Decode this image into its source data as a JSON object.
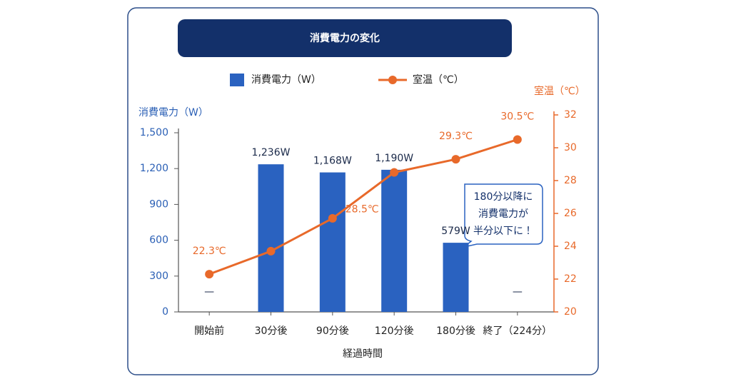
{
  "chart_data": {
    "type": "bar-line",
    "title": "消費電力の変化",
    "x_label": "経過時間",
    "y_label": "消費電力（W）",
    "y2_label": "室温（℃）",
    "categories": [
      "開始前",
      "30分後",
      "90分後",
      "120分後",
      "180分後",
      "終了（224分）"
    ],
    "series": [
      {
        "name": "消費電力（W）",
        "type": "bar",
        "color": "#2a62c0",
        "values": [
          null,
          1236,
          1168,
          1190,
          579,
          null
        ],
        "value_labels": [
          "—",
          "1,236W",
          "1,168W",
          "1,190W",
          "579W",
          "—"
        ]
      },
      {
        "name": "室温（℃）",
        "type": "line",
        "axis": "y2",
        "color": "#e8692a",
        "values": [
          22.3,
          23.7,
          25.7,
          28.5,
          29.3,
          30.5
        ],
        "value_labels": [
          "22.3℃",
          null,
          null,
          "28.5℃",
          "29.3℃",
          "30.5℃"
        ]
      }
    ],
    "ylim": [
      0,
      1500
    ],
    "yticks": [
      0,
      300,
      600,
      900,
      {
        "value": 1200,
        "label": "1,200"
      },
      {
        "value": 1500,
        "label": "1,500"
      }
    ],
    "y2lim": [
      20,
      32
    ],
    "y2ticks": [
      20,
      22,
      24,
      26,
      28,
      30,
      32
    ],
    "annotation": [
      "180分以降に",
      "消費電力が",
      "半分以下に！"
    ]
  }
}
